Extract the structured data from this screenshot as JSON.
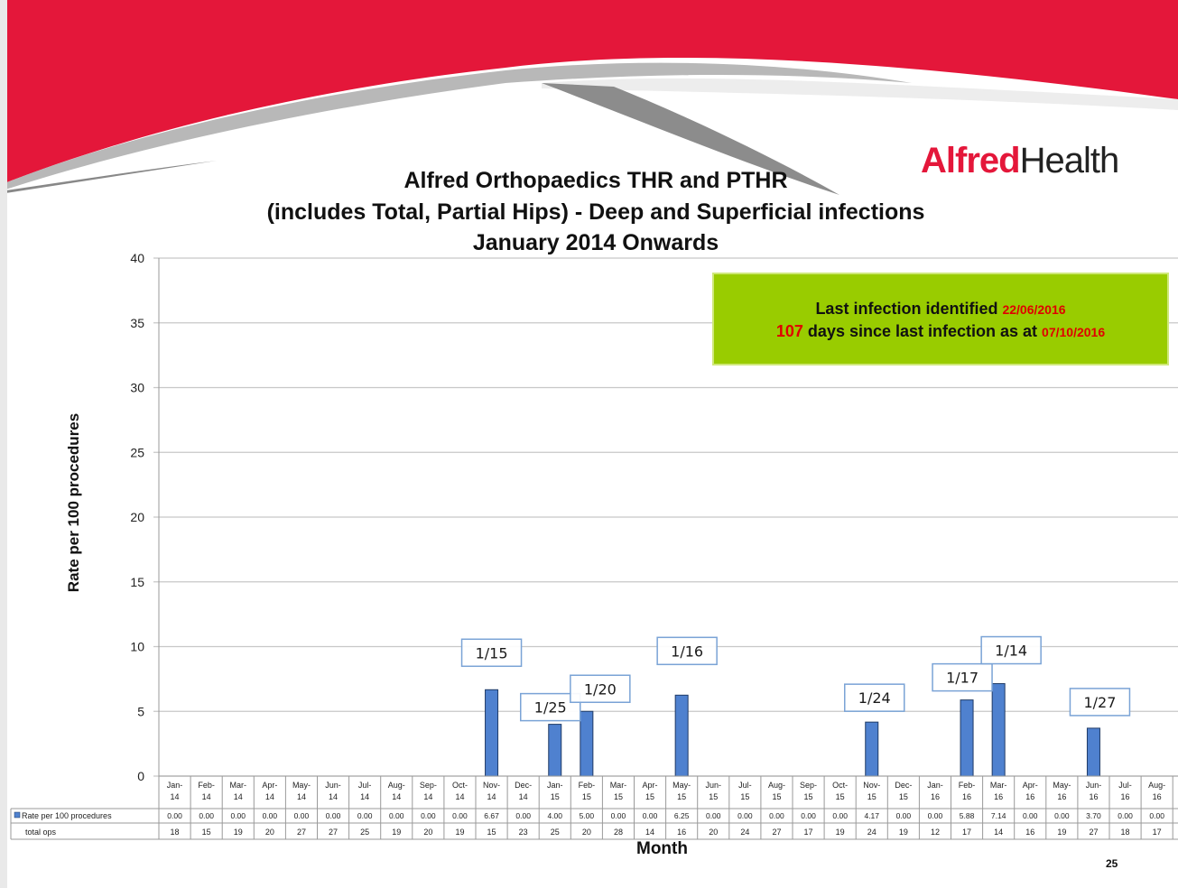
{
  "header": {
    "brand_part1": "Alfred",
    "brand_part2": "Health",
    "colors": {
      "brand_red": "#e4173a",
      "swoosh_gray": "#9a9a9a"
    }
  },
  "info_box": {
    "line1_text": "Last infection identified",
    "line1_date": "22/06/2016",
    "line2_days": "107",
    "line2_text": "days since last infection as at",
    "line2_date": "07/10/2016",
    "color": "#99cc00"
  },
  "page_number": "25",
  "chart_data": {
    "type": "bar",
    "title_lines": [
      "Alfred Orthopaedics THR and PTHR",
      "(includes Total,  Partial Hips) - Deep and Superficial infections",
      "January 2014 Onwards"
    ],
    "xlabel": "Month",
    "ylabel": "Rate per 100 procedures",
    "ylim": [
      0,
      40
    ],
    "yticks": [
      0,
      5,
      10,
      15,
      20,
      25,
      30,
      35,
      40
    ],
    "grid": true,
    "bar_color": "#4f81cf",
    "categories": [
      [
        "Jan-",
        "14"
      ],
      [
        "Feb-",
        "14"
      ],
      [
        "Mar-",
        "14"
      ],
      [
        "Apr-",
        "14"
      ],
      [
        "May-",
        "14"
      ],
      [
        "Jun-",
        "14"
      ],
      [
        "Jul-",
        "14"
      ],
      [
        "Aug-",
        "14"
      ],
      [
        "Sep-",
        "14"
      ],
      [
        "Oct-",
        "14"
      ],
      [
        "Nov-",
        "14"
      ],
      [
        "Dec-",
        "14"
      ],
      [
        "Jan-",
        "15"
      ],
      [
        "Feb-",
        "15"
      ],
      [
        "Mar-",
        "15"
      ],
      [
        "Apr-",
        "15"
      ],
      [
        "May-",
        "15"
      ],
      [
        "Jun-",
        "15"
      ],
      [
        "Jul-",
        "15"
      ],
      [
        "Aug-",
        "15"
      ],
      [
        "Sep-",
        "15"
      ],
      [
        "Oct-",
        "15"
      ],
      [
        "Nov-",
        "15"
      ],
      [
        "Dec-",
        "15"
      ],
      [
        "Jan-",
        "16"
      ],
      [
        "Feb-",
        "16"
      ],
      [
        "Mar-",
        "16"
      ],
      [
        "Apr-",
        "16"
      ],
      [
        "May-",
        "16"
      ],
      [
        "Jun-",
        "16"
      ],
      [
        "Jul-",
        "16"
      ],
      [
        "Aug-",
        "16"
      ]
    ],
    "series": [
      {
        "name": "Rate per 100 procedures",
        "values": [
          0.0,
          0.0,
          0.0,
          0.0,
          0.0,
          0.0,
          0.0,
          0.0,
          0.0,
          0.0,
          6.67,
          0.0,
          4.0,
          5.0,
          0.0,
          0.0,
          6.25,
          0.0,
          0.0,
          0.0,
          0.0,
          0.0,
          4.17,
          0.0,
          0.0,
          5.88,
          7.14,
          0.0,
          0.0,
          3.7,
          0.0,
          0.0
        ],
        "display": [
          "0.00",
          "0.00",
          "0.00",
          "0.00",
          "0.00",
          "0.00",
          "0.00",
          "0.00",
          "0.00",
          "0.00",
          "6.67",
          "0.00",
          "4.00",
          "5.00",
          "0.00",
          "0.00",
          "6.25",
          "0.00",
          "0.00",
          "0.00",
          "0.00",
          "0.00",
          "4.17",
          "0.00",
          "0.00",
          "5.88",
          "7.14",
          "0.00",
          "0.00",
          "3.70",
          "0.00",
          "0.00"
        ]
      },
      {
        "name": "total ops",
        "values": [
          18,
          15,
          19,
          20,
          27,
          27,
          25,
          19,
          20,
          19,
          15,
          23,
          25,
          20,
          28,
          14,
          16,
          20,
          24,
          27,
          17,
          19,
          24,
          19,
          12,
          17,
          14,
          16,
          19,
          27,
          18,
          17
        ]
      }
    ],
    "annotations": [
      {
        "index": 10,
        "text": "1/15"
      },
      {
        "index": 12,
        "text": "1/25"
      },
      {
        "index": 13,
        "text": "1/20"
      },
      {
        "index": 16,
        "text": "1/16"
      },
      {
        "index": 22,
        "text": "1/24"
      },
      {
        "index": 25,
        "text": "1/17"
      },
      {
        "index": 26,
        "text": "1/14"
      },
      {
        "index": 29,
        "text": "1/27"
      }
    ]
  }
}
